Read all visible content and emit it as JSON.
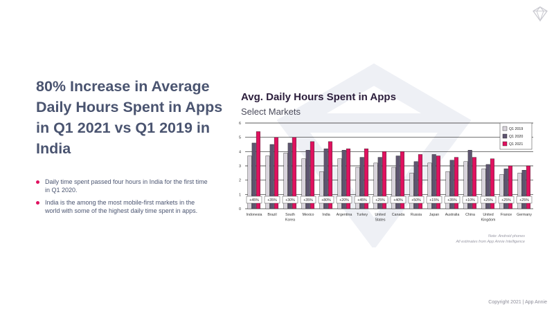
{
  "slide": {
    "headline": "80% Increase in Average Daily Hours Spent in Apps in Q1 2021 vs Q1 2019 in India",
    "bullets": [
      "Daily time spent passed four hours in India for the first time in Q1 2020.",
      "India is the among the most mobile-first markets in the world with some of the highest daily time spent in apps."
    ],
    "note_line1": "Note: Android phones",
    "note_line2": "All estimates from App Annie Intelligence",
    "copyright": "Copyright 2021  |  App Annie"
  },
  "colors": {
    "accent": "#e0115f",
    "text": "#4a5470",
    "q1_2019": "#d9d4dc",
    "q1_2020": "#5e5570",
    "q1_2021": "#e0115f"
  },
  "chart_data": {
    "type": "bar",
    "title": "Avg. Daily Hours Spent in Apps",
    "subtitle": "Select Markets",
    "xlabel": "",
    "ylabel": "",
    "ylim": [
      0,
      6
    ],
    "yticks": [
      "0",
      "1",
      "2",
      "3",
      "4",
      "5",
      "6"
    ],
    "grid": true,
    "legend_position": "top-right",
    "categories": [
      "Indonesia",
      "Brazil",
      "South Korea",
      "Mexico",
      "India",
      "Argentina",
      "Turkey",
      "United States",
      "Canada",
      "Russia",
      "Japan",
      "Australia",
      "China",
      "United Kingdom",
      "France",
      "Germany"
    ],
    "category_lines": [
      [
        "Indonesia"
      ],
      [
        "Brazil"
      ],
      [
        "South",
        "Korea"
      ],
      [
        "Mexico"
      ],
      [
        "India"
      ],
      [
        "Argentina"
      ],
      [
        "Turkey"
      ],
      [
        "United",
        "States"
      ],
      [
        "Canada"
      ],
      [
        "Russia"
      ],
      [
        "Japan"
      ],
      [
        "Australia"
      ],
      [
        "China"
      ],
      [
        "United",
        "Kingdom"
      ],
      [
        "France"
      ],
      [
        "Germany"
      ]
    ],
    "series": [
      {
        "name": "Q1 2019",
        "values": [
          3.7,
          3.7,
          3.9,
          3.5,
          2.6,
          3.5,
          2.9,
          3.2,
          2.9,
          2.5,
          3.2,
          2.6,
          3.3,
          2.8,
          2.4,
          2.5
        ]
      },
      {
        "name": "Q1 2020",
        "values": [
          4.6,
          4.5,
          4.6,
          4.1,
          4.2,
          4.1,
          3.6,
          3.6,
          3.7,
          3.3,
          3.8,
          3.4,
          4.1,
          3.1,
          2.8,
          2.7
        ]
      },
      {
        "name": "Q1 2021",
        "values": [
          5.4,
          5.0,
          5.0,
          4.7,
          4.7,
          4.2,
          4.2,
          4.0,
          4.0,
          3.8,
          3.7,
          3.6,
          3.6,
          3.5,
          3.0,
          3.0
        ]
      }
    ],
    "growth_labels": [
      "+45%",
      "+35%",
      "+30%",
      "+35%",
      "+80%",
      "+20%",
      "+45%",
      "+25%",
      "+40%",
      "+50%",
      "+15%",
      "+35%",
      "+10%",
      "+25%",
      "+25%",
      "+25%"
    ]
  }
}
